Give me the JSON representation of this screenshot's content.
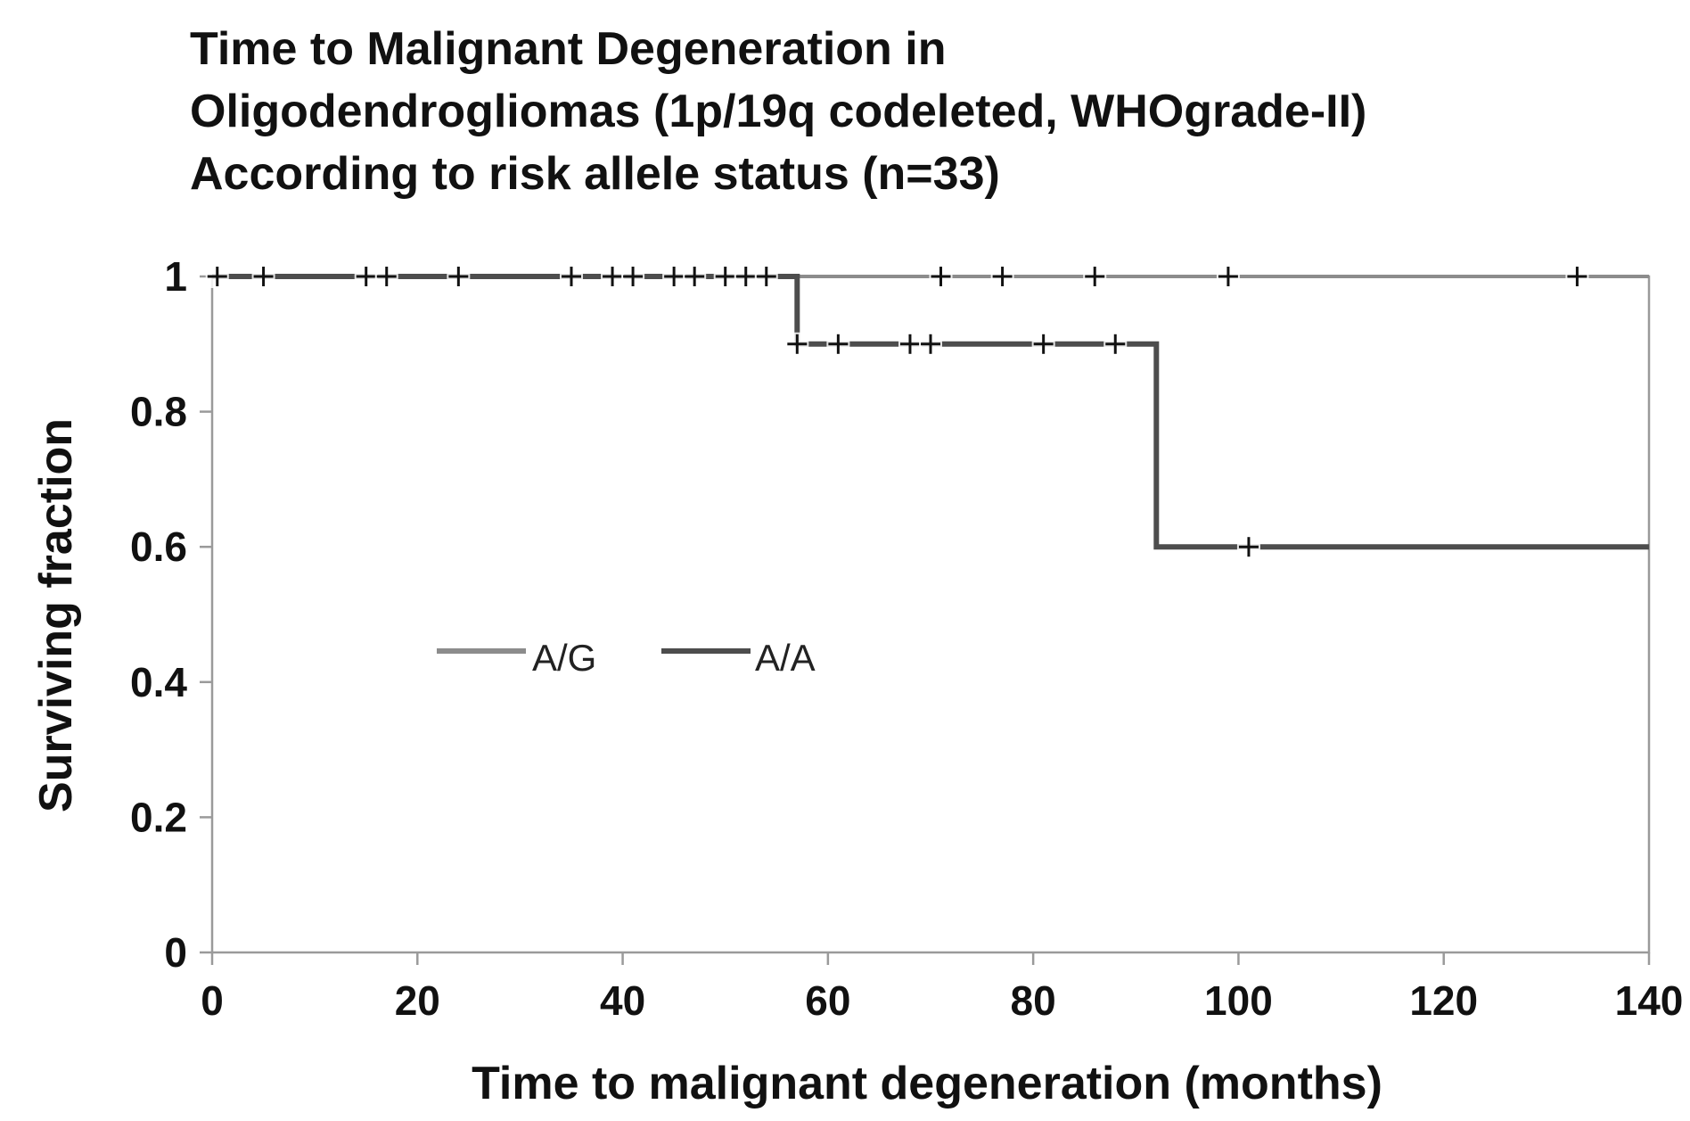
{
  "chart_data": {
    "type": "line",
    "subtype": "kaplan-meier",
    "title_lines": [
      "Time to Malignant Degeneration  in",
      "Oligodendrogliomas (1p/19q codeleted, WHOgrade-II)",
      "According to risk allele status (n=33)"
    ],
    "xlabel": "Time to malignant degeneration (months)",
    "ylabel": "Surviving fraction",
    "xlim": [
      0,
      140
    ],
    "ylim": [
      0,
      1
    ],
    "xticks": [
      0,
      20,
      40,
      60,
      80,
      100,
      120,
      140
    ],
    "yticks": [
      0,
      0.2,
      0.4,
      0.6,
      0.8,
      1
    ],
    "ytick_labels": [
      "0",
      "0.2",
      "0.4",
      "0.6",
      "0.8",
      "1"
    ],
    "xtick_labels": [
      "0",
      "20",
      "40",
      "60",
      "80",
      "100",
      "120",
      "140"
    ],
    "grid": false,
    "legend_position": "center-left",
    "series": [
      {
        "name": "A/G",
        "color": "#8c8c8c",
        "steps": [
          [
            0,
            1
          ],
          [
            140,
            1
          ]
        ],
        "censored": [
          [
            0.5,
            1
          ],
          [
            5,
            1
          ],
          [
            15,
            1
          ],
          [
            17,
            1
          ],
          [
            24,
            1
          ],
          [
            35,
            1
          ],
          [
            39,
            1
          ],
          [
            41,
            1
          ],
          [
            45,
            1
          ],
          [
            47,
            1
          ],
          [
            50,
            1
          ],
          [
            52,
            1
          ],
          [
            54,
            1
          ],
          [
            71,
            1
          ],
          [
            77,
            1
          ],
          [
            86,
            1
          ],
          [
            99,
            1
          ],
          [
            133,
            1
          ]
        ]
      },
      {
        "name": "A/A",
        "color": "#4d4d4d",
        "steps": [
          [
            0,
            1
          ],
          [
            57,
            1
          ],
          [
            57,
            0.9
          ],
          [
            92,
            0.9
          ],
          [
            92,
            0.6
          ],
          [
            140,
            0.6
          ]
        ],
        "censored": [
          [
            57,
            0.9
          ],
          [
            61,
            0.9
          ],
          [
            68,
            0.9
          ],
          [
            70,
            0.9
          ],
          [
            81,
            0.9
          ],
          [
            88,
            0.9
          ],
          [
            101,
            0.6
          ]
        ]
      }
    ]
  }
}
